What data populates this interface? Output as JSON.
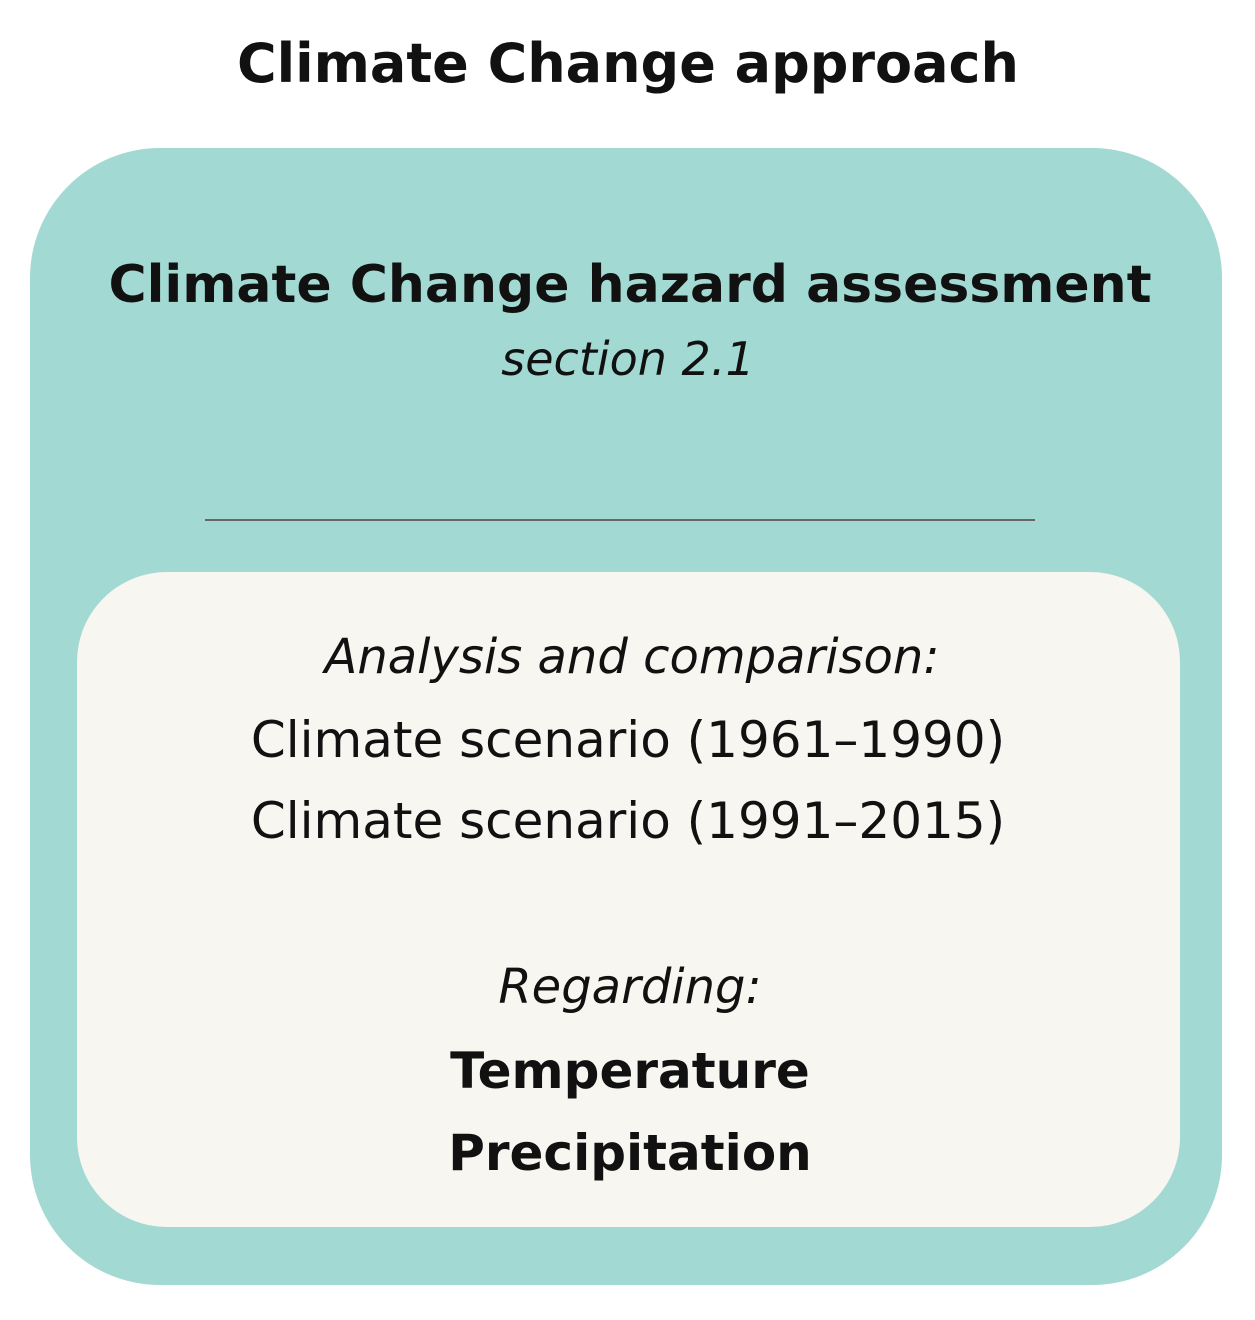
{
  "header": {
    "title": "Climate Change approach"
  },
  "outer_box": {
    "title": "Climate Change hazard assessment",
    "subtitle": "section 2.1"
  },
  "inner_box": {
    "intro": "Analysis and comparison:",
    "scenarios": [
      "Climate scenario (1961–1990)",
      "Climate scenario (1991–2015)"
    ],
    "regarding": "Regarding:",
    "variables": [
      "Temperature",
      "Precipitation"
    ]
  }
}
